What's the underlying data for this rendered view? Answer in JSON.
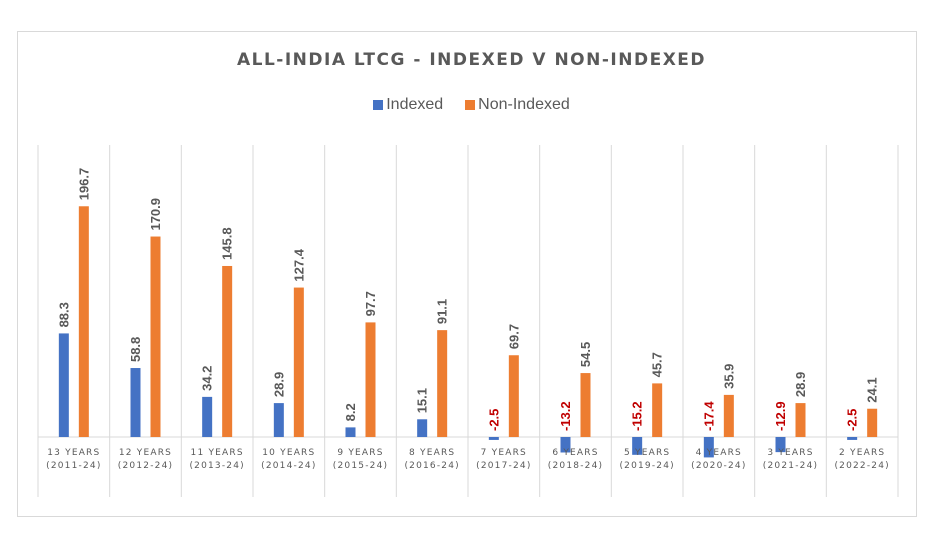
{
  "chart_data": {
    "type": "bar",
    "title": "ALL-INDIA LTCG - INDEXED V NON-INDEXED",
    "categories": [
      [
        "13 YEARS",
        "(2011-24)"
      ],
      [
        "12 YEARS",
        "(2012-24)"
      ],
      [
        "11 YEARS",
        "(2013-24)"
      ],
      [
        "10 YEARS",
        "(2014-24)"
      ],
      [
        "9 YEARS",
        "(2015-24)"
      ],
      [
        "8 YEARS",
        "(2016-24)"
      ],
      [
        "7 YEARS",
        "(2017-24)"
      ],
      [
        "6 YEARS",
        "(2018-24)"
      ],
      [
        "5 YEARS",
        "(2019-24)"
      ],
      [
        "4 YEARS",
        "(2020-24)"
      ],
      [
        "3 YEARS",
        "(2021-24)"
      ],
      [
        "2 YEARS",
        "(2022-24)"
      ]
    ],
    "series": [
      {
        "name": "Indexed",
        "color": "#4472c4",
        "values": [
          88.3,
          58.8,
          34.2,
          28.9,
          8.2,
          15.1,
          -2.5,
          -13.2,
          -15.2,
          -17.4,
          -12.9,
          -2.5
        ]
      },
      {
        "name": "Non-Indexed",
        "color": "#ed7d31",
        "values": [
          196.7,
          170.9,
          145.8,
          127.4,
          97.7,
          91.1,
          69.7,
          54.5,
          45.7,
          35.9,
          28.9,
          24.1
        ]
      }
    ],
    "legend": "top",
    "grid": false,
    "colors": {
      "label_positive": "#595959",
      "label_negative": "#c00000",
      "category_separator": "#d9d9d9"
    }
  }
}
